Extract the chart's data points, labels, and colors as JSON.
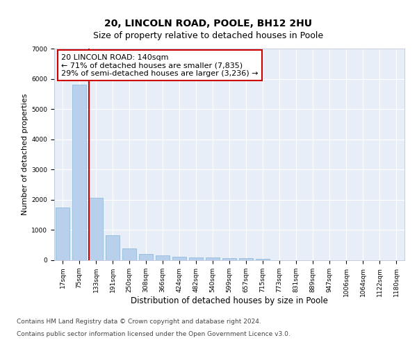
{
  "title_line1": "20, LINCOLN ROAD, POOLE, BH12 2HU",
  "title_line2": "Size of property relative to detached houses in Poole",
  "xlabel": "Distribution of detached houses by size in Poole",
  "ylabel": "Number of detached properties",
  "bar_labels": [
    "17sqm",
    "75sqm",
    "133sqm",
    "191sqm",
    "250sqm",
    "308sqm",
    "366sqm",
    "424sqm",
    "482sqm",
    "540sqm",
    "599sqm",
    "657sqm",
    "715sqm",
    "773sqm",
    "831sqm",
    "889sqm",
    "947sqm",
    "1006sqm",
    "1064sqm",
    "1122sqm",
    "1180sqm"
  ],
  "bar_values": [
    1750,
    5800,
    2060,
    820,
    380,
    210,
    150,
    110,
    100,
    90,
    75,
    65,
    55,
    0,
    0,
    0,
    0,
    0,
    0,
    0,
    0
  ],
  "bar_color": "#b8d0eb",
  "bar_edge_color": "#8ab4d8",
  "vline_color": "#cc0000",
  "vline_x_index": 2,
  "annotation_text": "20 LINCOLN ROAD: 140sqm\n← 71% of detached houses are smaller (7,835)\n29% of semi-detached houses are larger (3,236) →",
  "annotation_box_facecolor": "#ffffff",
  "annotation_box_edgecolor": "#cc0000",
  "ylim": [
    0,
    7000
  ],
  "yticks": [
    0,
    1000,
    2000,
    3000,
    4000,
    5000,
    6000,
    7000
  ],
  "footer_line1": "Contains HM Land Registry data © Crown copyright and database right 2024.",
  "footer_line2": "Contains public sector information licensed under the Open Government Licence v3.0.",
  "plot_bg_color": "#e8eef8",
  "grid_color": "#ffffff",
  "fig_bg_color": "#ffffff",
  "title_fontsize": 10,
  "subtitle_fontsize": 9,
  "ylabel_fontsize": 8,
  "xlabel_fontsize": 8.5,
  "tick_fontsize": 6.5,
  "annotation_fontsize": 8,
  "footer_fontsize": 6.5
}
